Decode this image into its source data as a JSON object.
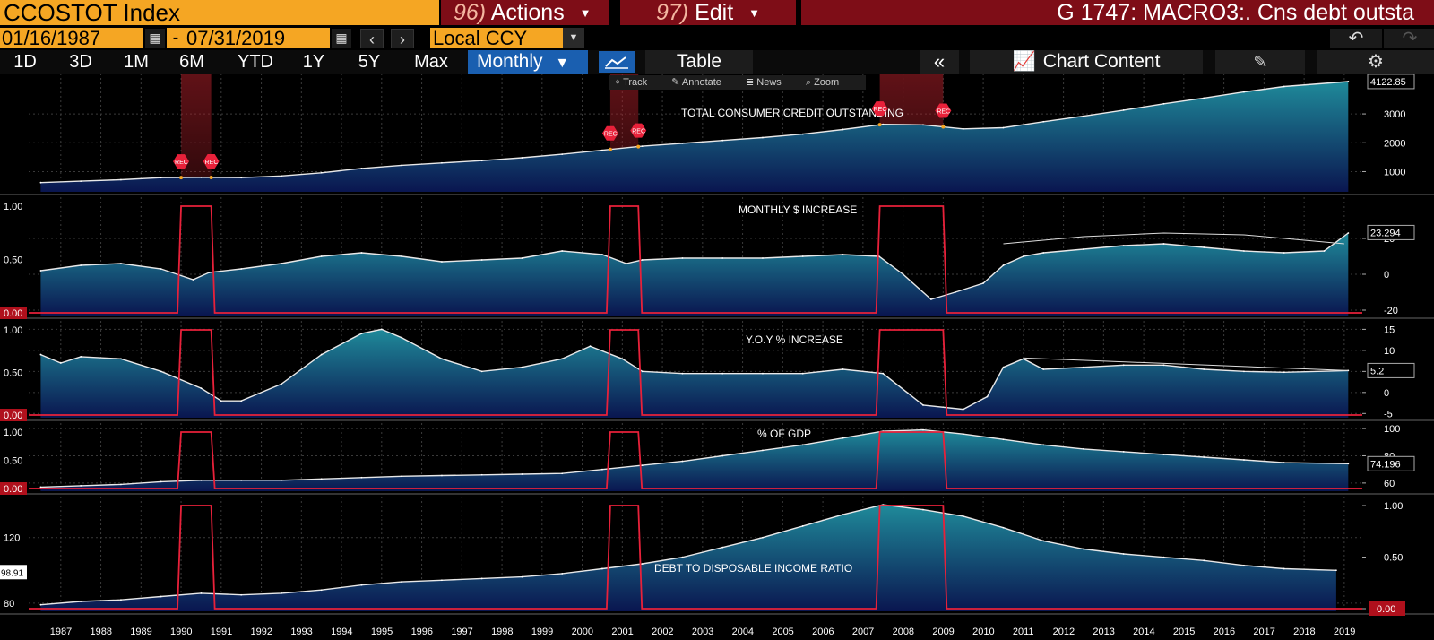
{
  "header": {
    "ticker": "CCOSTOT Index",
    "actions_num": "96)",
    "actions_label": "Actions",
    "edit_num": "97)",
    "edit_label": "Edit",
    "title": "G 1747: MACRO3:. Cns debt outsta"
  },
  "controls": {
    "start_date": "01/16/1987",
    "end_date": "07/31/2019",
    "currency": "Local CCY",
    "ranges": [
      "1D",
      "3D",
      "1M",
      "6M",
      "YTD",
      "1Y",
      "5Y",
      "Max"
    ],
    "frequency": "Monthly",
    "table_label": "Table",
    "chart_content_label": "Chart Content",
    "tools": [
      "Track",
      "Annotate",
      "News",
      "Zoom"
    ]
  },
  "colors": {
    "area_top": "#1f8a9a",
    "area_bottom": "#0a1650",
    "recession": "#e8213a",
    "header_orange": "#f5a623",
    "menu_red": "#7e0d17",
    "selected_blue": "#1a5fb0"
  },
  "chart_data": {
    "type": "area",
    "x_years": [
      "1987",
      "1988",
      "1989",
      "1990",
      "1991",
      "1992",
      "1993",
      "1994",
      "1995",
      "1996",
      "1997",
      "1998",
      "1999",
      "2000",
      "2001",
      "2002",
      "2003",
      "2004",
      "2005",
      "2006",
      "2007",
      "2008",
      "2009",
      "2010",
      "2011",
      "2012",
      "2013",
      "2014",
      "2015",
      "2016",
      "2017",
      "2018",
      "2019"
    ],
    "recessions": [
      [
        1990.5,
        1991.25
      ],
      [
        2001.2,
        2001.9
      ],
      [
        2007.92,
        2009.5
      ]
    ],
    "recession_marker": "REC",
    "panels": [
      {
        "title": "TOTAL CONSUMER CREDIT OUTSTANDING",
        "right_ticks": [
          "1000",
          "2000",
          "3000"
        ],
        "ylim": [
          300,
          4400
        ],
        "last_value": "4122.85",
        "points": [
          [
            1987,
            620
          ],
          [
            1988,
            670
          ],
          [
            1989,
            720
          ],
          [
            1990,
            790
          ],
          [
            1991,
            800
          ],
          [
            1992,
            790
          ],
          [
            1993,
            850
          ],
          [
            1994,
            960
          ],
          [
            1995,
            1110
          ],
          [
            1996,
            1220
          ],
          [
            1997,
            1300
          ],
          [
            1998,
            1380
          ],
          [
            1999,
            1480
          ],
          [
            2000,
            1600
          ],
          [
            2001,
            1740
          ],
          [
            2002,
            1880
          ],
          [
            2003,
            1980
          ],
          [
            2004,
            2080
          ],
          [
            2005,
            2180
          ],
          [
            2006,
            2300
          ],
          [
            2007,
            2460
          ],
          [
            2008,
            2640
          ],
          [
            2009,
            2620
          ],
          [
            2010,
            2480
          ],
          [
            2011,
            2520
          ],
          [
            2012,
            2730
          ],
          [
            2013,
            2920
          ],
          [
            2014,
            3130
          ],
          [
            2015,
            3350
          ],
          [
            2016,
            3550
          ],
          [
            2017,
            3760
          ],
          [
            2018,
            3950
          ],
          [
            2019.6,
            4122
          ]
        ]
      },
      {
        "title": "MONTHLY $ INCREASE",
        "left_ticks": [
          "0.00",
          "0.50",
          "1.00"
        ],
        "right_ticks": [
          "-20",
          "0",
          "20"
        ],
        "ylim": [
          -23,
          43
        ],
        "last_value": "23.294",
        "points": [
          [
            1987,
            2
          ],
          [
            1988,
            5
          ],
          [
            1989,
            6
          ],
          [
            1990,
            3
          ],
          [
            1990.8,
            -3
          ],
          [
            1991.2,
            1
          ],
          [
            1992,
            3
          ],
          [
            1993,
            6
          ],
          [
            1994,
            10
          ],
          [
            1995,
            12
          ],
          [
            1996,
            10
          ],
          [
            1997,
            7
          ],
          [
            1998,
            8
          ],
          [
            1999,
            9
          ],
          [
            2000,
            13
          ],
          [
            2001,
            11
          ],
          [
            2001.6,
            6
          ],
          [
            2002,
            8
          ],
          [
            2003,
            9
          ],
          [
            2004,
            9
          ],
          [
            2005,
            9
          ],
          [
            2006,
            10
          ],
          [
            2007,
            11
          ],
          [
            2007.9,
            10
          ],
          [
            2008.5,
            0
          ],
          [
            2009.2,
            -14
          ],
          [
            2009.8,
            -10
          ],
          [
            2010.5,
            -5
          ],
          [
            2011,
            5
          ],
          [
            2011.5,
            10
          ],
          [
            2012,
            12
          ],
          [
            2013,
            14
          ],
          [
            2014,
            16
          ],
          [
            2015,
            17
          ],
          [
            2016,
            15
          ],
          [
            2017,
            13
          ],
          [
            2018,
            12
          ],
          [
            2019,
            13
          ],
          [
            2019.6,
            23
          ]
        ],
        "trend_arc": [
          [
            2011,
            17
          ],
          [
            2013,
            21
          ],
          [
            2015,
            23
          ],
          [
            2017,
            22
          ],
          [
            2019.5,
            17
          ]
        ]
      },
      {
        "title": "Y.O.Y % INCREASE",
        "left_ticks": [
          "0.00",
          "0.50",
          "1.00"
        ],
        "right_ticks": [
          "-5",
          "0",
          "5",
          "10",
          "15"
        ],
        "ylim": [
          -6,
          17
        ],
        "last_value": "5.2",
        "points": [
          [
            1987,
            9
          ],
          [
            1987.5,
            7
          ],
          [
            1988,
            8.5
          ],
          [
            1989,
            8
          ],
          [
            1990,
            5
          ],
          [
            1991,
            1
          ],
          [
            1991.5,
            -2
          ],
          [
            1992,
            -2
          ],
          [
            1993,
            2
          ],
          [
            1994,
            9
          ],
          [
            1995,
            14
          ],
          [
            1995.5,
            15
          ],
          [
            1996,
            13
          ],
          [
            1997,
            8
          ],
          [
            1998,
            5
          ],
          [
            1999,
            6
          ],
          [
            2000,
            8
          ],
          [
            2000.7,
            11
          ],
          [
            2001.5,
            8
          ],
          [
            2002,
            5
          ],
          [
            2003,
            4.5
          ],
          [
            2004,
            4.5
          ],
          [
            2005,
            4.5
          ],
          [
            2006,
            4.5
          ],
          [
            2007,
            5.5
          ],
          [
            2008,
            4.5
          ],
          [
            2009,
            -3
          ],
          [
            2010,
            -4
          ],
          [
            2010.6,
            -1
          ],
          [
            2011,
            6
          ],
          [
            2011.5,
            8
          ],
          [
            2012,
            5.5
          ],
          [
            2013,
            6
          ],
          [
            2014,
            6.5
          ],
          [
            2015,
            6.5
          ],
          [
            2016,
            5.5
          ],
          [
            2017,
            5
          ],
          [
            2018,
            4.8
          ],
          [
            2019.6,
            5.2
          ]
        ],
        "trend_line": [
          [
            2011.5,
            8.2
          ],
          [
            2019.6,
            5.2
          ]
        ]
      },
      {
        "title": "% OF GDP",
        "left_ticks": [
          "0.00",
          "0.50",
          "1.00"
        ],
        "right_ticks": [
          "60",
          "80",
          "100"
        ],
        "ylim": [
          54,
          104
        ],
        "last_value": "74.196",
        "points": [
          [
            1987,
            57
          ],
          [
            1988,
            58
          ],
          [
            1989,
            59
          ],
          [
            1990,
            61
          ],
          [
            1991,
            62
          ],
          [
            1992,
            62
          ],
          [
            1993,
            62
          ],
          [
            1994,
            63
          ],
          [
            1995,
            64
          ],
          [
            1996,
            65
          ],
          [
            1997,
            65.5
          ],
          [
            1998,
            66
          ],
          [
            1999,
            66.5
          ],
          [
            2000,
            67
          ],
          [
            2001,
            70
          ],
          [
            2002,
            73
          ],
          [
            2003,
            76
          ],
          [
            2004,
            80
          ],
          [
            2005,
            84
          ],
          [
            2006,
            88
          ],
          [
            2007,
            93
          ],
          [
            2008,
            98
          ],
          [
            2009,
            99
          ],
          [
            2010,
            96
          ],
          [
            2011,
            92
          ],
          [
            2012,
            88
          ],
          [
            2013,
            85
          ],
          [
            2014,
            83
          ],
          [
            2015,
            81
          ],
          [
            2016,
            79
          ],
          [
            2017,
            77
          ],
          [
            2018,
            75
          ],
          [
            2019.6,
            74.2
          ]
        ]
      },
      {
        "title": "DEBT TO DISPOSABLE INCOME RATIO",
        "left_ticks": [
          "80",
          "120"
        ],
        "right_ticks": [
          "0.00",
          "0.50",
          "1.00"
        ],
        "ylim": [
          75,
          145
        ],
        "last_value": "98.91",
        "points": [
          [
            1987,
            79
          ],
          [
            1988,
            81
          ],
          [
            1989,
            82
          ],
          [
            1990,
            84
          ],
          [
            1991,
            86
          ],
          [
            1992,
            85
          ],
          [
            1993,
            86
          ],
          [
            1994,
            88
          ],
          [
            1995,
            91
          ],
          [
            1996,
            93
          ],
          [
            1997,
            94
          ],
          [
            1998,
            95
          ],
          [
            1999,
            96
          ],
          [
            2000,
            98
          ],
          [
            2001,
            101
          ],
          [
            2002,
            104
          ],
          [
            2003,
            108
          ],
          [
            2004,
            114
          ],
          [
            2005,
            120
          ],
          [
            2006,
            127
          ],
          [
            2007,
            134
          ],
          [
            2008,
            140
          ],
          [
            2009,
            137
          ],
          [
            2010,
            133
          ],
          [
            2011,
            126
          ],
          [
            2012,
            118
          ],
          [
            2013,
            113
          ],
          [
            2014,
            110
          ],
          [
            2015,
            108
          ],
          [
            2016,
            106
          ],
          [
            2017,
            103
          ],
          [
            2018,
            101
          ],
          [
            2019.3,
            100
          ]
        ]
      }
    ]
  }
}
